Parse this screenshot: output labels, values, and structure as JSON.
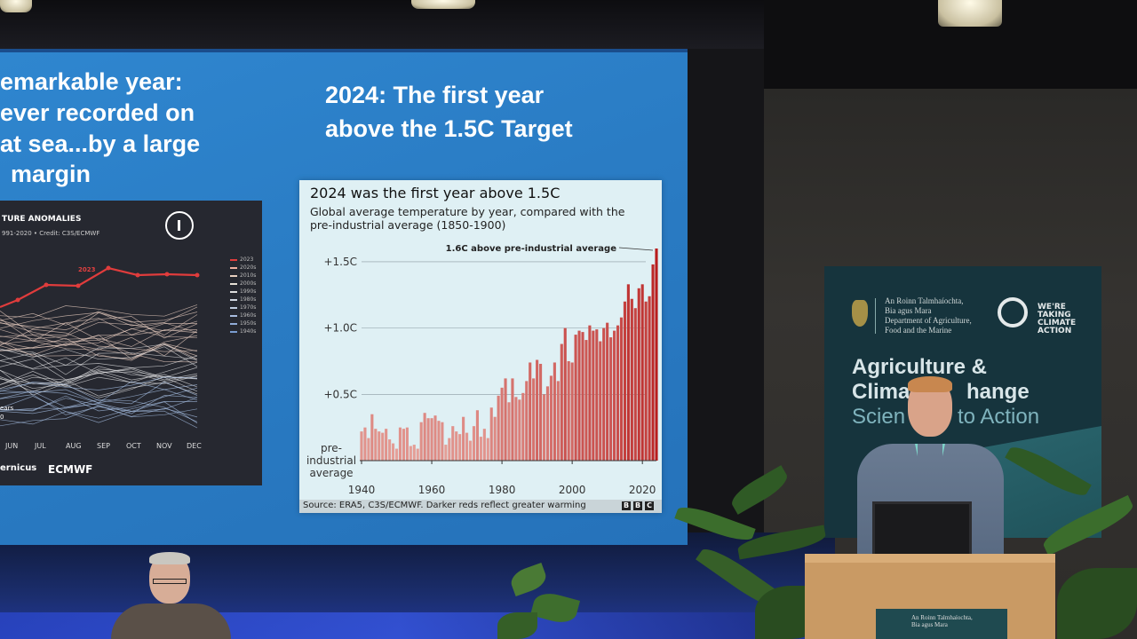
{
  "slide": {
    "left_title_lines": [
      "emarkable year:",
      "ever recorded on",
      "at sea...by a large",
      "margin"
    ],
    "right_title_lines": [
      "2024: The first year",
      "above the 1.5C Target"
    ]
  },
  "left_chart": {
    "title": "TURE ANOMALIES",
    "subtitle": "991-2020 • Credit: C3S/ECMWF",
    "highlight_label": "2023",
    "months": [
      "JUN",
      "JUL",
      "AUG",
      "SEP",
      "OCT",
      "NOV",
      "DEC"
    ],
    "legend": [
      "2023",
      "2020s",
      "2010s",
      "2000s",
      "1990s",
      "1980s",
      "1970s",
      "1960s",
      "1950s",
      "1940s"
    ],
    "side_text": [
      "ears",
      "0"
    ],
    "logos": [
      "ernicus",
      "ECMWF"
    ]
  },
  "chart_data": {
    "type": "bar",
    "title": "2024 was the first year above 1.5C",
    "subtitle": "Global average temperature by year, compared with the pre-industrial average (1850-1900)",
    "annotation": "1.6C above pre-industrial average",
    "y_ticks": [
      "+1.5C",
      "+1.0C",
      "+0.5C"
    ],
    "y_baseline_label": [
      "pre-",
      "industrial",
      "average"
    ],
    "x_ticks": [
      "1940",
      "1960",
      "1980",
      "2000",
      "2020"
    ],
    "ylim": [
      0,
      1.6
    ],
    "x": [
      1940,
      1941,
      1942,
      1943,
      1944,
      1945,
      1946,
      1947,
      1948,
      1949,
      1950,
      1951,
      1952,
      1953,
      1954,
      1955,
      1956,
      1957,
      1958,
      1959,
      1960,
      1961,
      1962,
      1963,
      1964,
      1965,
      1966,
      1967,
      1968,
      1969,
      1970,
      1971,
      1972,
      1973,
      1974,
      1975,
      1976,
      1977,
      1978,
      1979,
      1980,
      1981,
      1982,
      1983,
      1984,
      1985,
      1986,
      1987,
      1988,
      1989,
      1990,
      1991,
      1992,
      1993,
      1994,
      1995,
      1996,
      1997,
      1998,
      1999,
      2000,
      2001,
      2002,
      2003,
      2004,
      2005,
      2006,
      2007,
      2008,
      2009,
      2010,
      2011,
      2012,
      2013,
      2014,
      2015,
      2016,
      2017,
      2018,
      2019,
      2020,
      2021,
      2022,
      2023,
      2024
    ],
    "values": [
      0.22,
      0.25,
      0.17,
      0.35,
      0.24,
      0.22,
      0.21,
      0.24,
      0.16,
      0.13,
      0.09,
      0.25,
      0.24,
      0.25,
      0.11,
      0.12,
      0.09,
      0.29,
      0.36,
      0.32,
      0.32,
      0.34,
      0.3,
      0.29,
      0.12,
      0.17,
      0.26,
      0.22,
      0.2,
      0.33,
      0.21,
      0.15,
      0.26,
      0.38,
      0.18,
      0.24,
      0.17,
      0.4,
      0.33,
      0.49,
      0.55,
      0.62,
      0.44,
      0.62,
      0.48,
      0.46,
      0.51,
      0.6,
      0.74,
      0.62,
      0.76,
      0.73,
      0.5,
      0.56,
      0.64,
      0.74,
      0.6,
      0.88,
      1.0,
      0.75,
      0.74,
      0.95,
      0.98,
      0.97,
      0.91,
      1.02,
      0.98,
      0.99,
      0.9,
      1.0,
      1.04,
      0.93,
      0.98,
      1.02,
      1.08,
      1.2,
      1.33,
      1.22,
      1.15,
      1.3,
      1.33,
      1.2,
      1.24,
      1.48,
      1.6
    ],
    "source": "Source: ERA5, C3S/ECMWF. Darker reds reflect greater warming",
    "brand": [
      "B",
      "B",
      "C"
    ]
  },
  "banner": {
    "dept_lines": [
      "An Roinn Talmhaíochta,",
      "Bia agus Mara",
      "Department of Agriculture,",
      "Food and the Marine"
    ],
    "campaign_lines": [
      "WE'RE",
      "TAKING",
      "CLIMATE",
      "ACTION"
    ],
    "line1": "Agriculture &",
    "line2": "Clima",
    "line2b": "hange",
    "line3a": "Scien",
    "line3b": "to Action"
  },
  "podium_plate": [
    "An Roinn Talmhaíochta,",
    "Bia agus Mara"
  ],
  "colors": {
    "slide_bg": "#2a7cc4",
    "bar_light": "#e8a8a0",
    "bar_dark": "#b81d1d",
    "banner_bg": "#16343d"
  }
}
